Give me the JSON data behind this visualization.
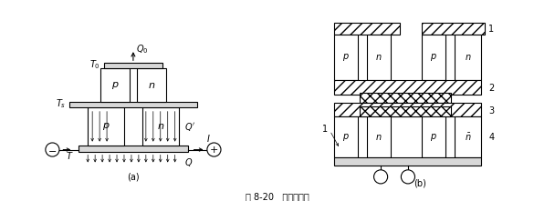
{
  "title": "图 8-20   二级热电堆",
  "bg_color": "#ffffff",
  "fig_w": 6.08,
  "fig_h": 2.21,
  "dpi": 100,
  "lc": "#000000"
}
